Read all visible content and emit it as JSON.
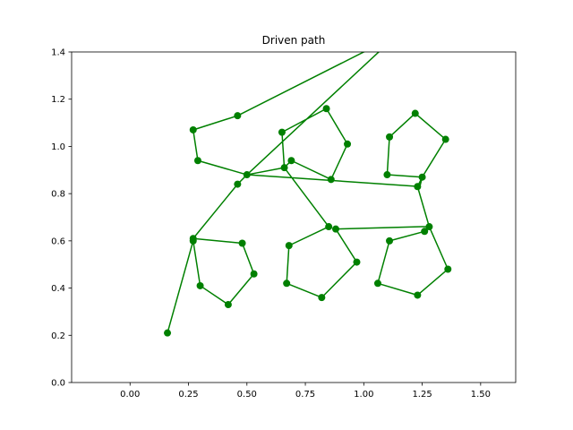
{
  "chart_data": {
    "type": "line",
    "title": "Driven path",
    "xlabel": "",
    "ylabel": "",
    "xlim": [
      -0.25,
      1.65
    ],
    "ylim": [
      0.0,
      1.4
    ],
    "xticks": [
      0.0,
      0.25,
      0.5,
      0.75,
      1.0,
      1.25,
      1.5
    ],
    "xtick_labels": [
      "0.00",
      "0.25",
      "0.50",
      "0.75",
      "1.00",
      "1.25",
      "1.50"
    ],
    "yticks": [
      0.0,
      0.2,
      0.4,
      0.6,
      0.8,
      1.0,
      1.2,
      1.4
    ],
    "ytick_labels": [
      "0.0",
      "0.2",
      "0.4",
      "0.6",
      "0.8",
      "1.0",
      "1.2",
      "1.4"
    ],
    "grid": false,
    "colors": {
      "series": "#008000",
      "axes": "#000000",
      "background": "#ffffff"
    },
    "series": [
      {
        "marker": "circle",
        "line_points": [
          [
            0.16,
            0.21
          ],
          [
            0.27,
            0.6
          ],
          [
            0.3,
            0.41
          ],
          [
            0.42,
            0.33
          ],
          [
            0.53,
            0.46
          ],
          [
            0.48,
            0.59
          ],
          [
            0.27,
            0.61
          ],
          [
            0.46,
            0.84
          ],
          [
            0.5,
            0.88
          ],
          [
            0.29,
            0.94
          ],
          [
            0.27,
            1.07
          ],
          [
            0.46,
            1.13
          ],
          [
            1.14,
            1.47
          ],
          [
            0.5,
            0.88
          ],
          [
            0.66,
            0.91
          ],
          [
            0.65,
            1.06
          ],
          [
            0.84,
            1.16
          ],
          [
            0.93,
            1.01
          ],
          [
            0.86,
            0.86
          ],
          [
            0.69,
            0.94
          ],
          [
            0.66,
            0.91
          ],
          [
            0.85,
            0.66
          ],
          [
            0.68,
            0.58
          ],
          [
            0.67,
            0.42
          ],
          [
            0.82,
            0.36
          ],
          [
            0.97,
            0.51
          ],
          [
            0.88,
            0.65
          ],
          [
            1.25,
            0.66
          ],
          [
            1.28,
            0.66
          ],
          [
            1.36,
            0.48
          ],
          [
            1.23,
            0.37
          ],
          [
            1.06,
            0.42
          ],
          [
            1.11,
            0.6
          ],
          [
            1.26,
            0.64
          ],
          [
            1.28,
            0.66
          ],
          [
            1.23,
            0.83
          ],
          [
            1.25,
            0.87
          ],
          [
            1.1,
            0.88
          ],
          [
            1.11,
            1.04
          ],
          [
            1.22,
            1.14
          ],
          [
            1.35,
            1.03
          ],
          [
            1.25,
            0.87
          ],
          [
            1.24,
            0.83
          ],
          [
            0.5,
            0.88
          ]
        ],
        "points": [
          [
            0.16,
            0.21
          ],
          [
            0.27,
            0.6
          ],
          [
            0.27,
            0.61
          ],
          [
            0.3,
            0.41
          ],
          [
            0.42,
            0.33
          ],
          [
            0.53,
            0.46
          ],
          [
            0.48,
            0.59
          ],
          [
            0.46,
            0.84
          ],
          [
            0.5,
            0.88
          ],
          [
            0.29,
            0.94
          ],
          [
            0.27,
            1.07
          ],
          [
            0.46,
            1.13
          ],
          [
            0.66,
            0.91
          ],
          [
            0.65,
            1.06
          ],
          [
            0.84,
            1.16
          ],
          [
            0.93,
            1.01
          ],
          [
            0.86,
            0.86
          ],
          [
            0.69,
            0.94
          ],
          [
            0.85,
            0.66
          ],
          [
            0.88,
            0.65
          ],
          [
            0.68,
            0.58
          ],
          [
            0.67,
            0.42
          ],
          [
            0.82,
            0.36
          ],
          [
            0.97,
            0.51
          ],
          [
            1.26,
            0.64
          ],
          [
            1.28,
            0.66
          ],
          [
            1.36,
            0.48
          ],
          [
            1.23,
            0.37
          ],
          [
            1.06,
            0.42
          ],
          [
            1.11,
            0.6
          ],
          [
            1.23,
            0.83
          ],
          [
            1.25,
            0.87
          ],
          [
            1.1,
            0.88
          ],
          [
            1.11,
            1.04
          ],
          [
            1.22,
            1.14
          ],
          [
            1.35,
            1.03
          ]
        ]
      }
    ]
  }
}
